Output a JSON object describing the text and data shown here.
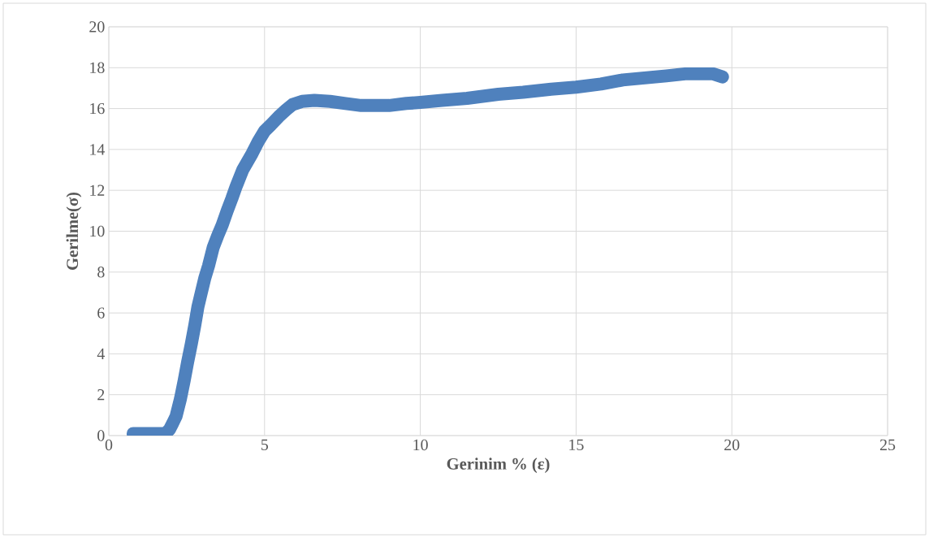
{
  "chart_data": {
    "type": "line",
    "xlabel": "Gerinim % (ε)",
    "ylabel": "Gerilme(σ)",
    "xlim": [
      0,
      25
    ],
    "xticks": [
      0,
      5,
      10,
      15,
      20,
      25
    ],
    "ylim": [
      0,
      20
    ],
    "yticks": [
      0,
      2,
      4,
      6,
      8,
      10,
      12,
      14,
      16,
      18,
      20
    ],
    "grid": true,
    "series": [
      {
        "color": "#4f81bd",
        "x": [
          0.78,
          1.0,
          1.3,
          1.6,
          1.82,
          1.95,
          2.05,
          2.16,
          2.3,
          2.42,
          2.53,
          2.65,
          2.76,
          2.86,
          2.97,
          3.08,
          3.2,
          3.35,
          3.5,
          3.64,
          3.8,
          3.95,
          4.09,
          4.3,
          4.45,
          4.6,
          4.8,
          5.0,
          5.2,
          5.45,
          5.7,
          5.9,
          6.2,
          6.6,
          7.1,
          7.6,
          8.1,
          8.6,
          9.0,
          9.55,
          10.0,
          10.7,
          11.5,
          12.5,
          13.3,
          14.2,
          15.0,
          15.8,
          16.5,
          17.2,
          17.9,
          18.5,
          19.1,
          19.4,
          19.7
        ],
        "values": [
          0.1,
          0.1,
          0.1,
          0.1,
          0.1,
          0.3,
          0.6,
          0.95,
          1.8,
          2.7,
          3.6,
          4.5,
          5.4,
          6.3,
          7.0,
          7.7,
          8.3,
          9.2,
          9.8,
          10.3,
          11.0,
          11.6,
          12.2,
          13.0,
          13.4,
          13.8,
          14.4,
          14.9,
          15.2,
          15.6,
          15.95,
          16.2,
          16.35,
          16.4,
          16.35,
          16.25,
          16.15,
          16.15,
          16.15,
          16.25,
          16.3,
          16.4,
          16.5,
          16.7,
          16.8,
          16.95,
          17.05,
          17.2,
          17.4,
          17.5,
          17.6,
          17.7,
          17.7,
          17.7,
          17.55
        ]
      }
    ]
  }
}
